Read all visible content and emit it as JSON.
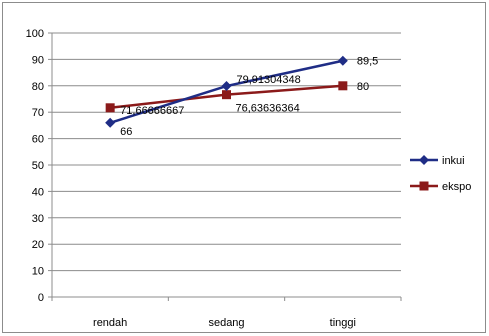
{
  "chart_data": {
    "type": "line",
    "title": "",
    "xlabel": "",
    "ylabel": "",
    "categories": [
      "rendah",
      "sedang",
      "tinggi"
    ],
    "ylim": [
      0,
      100
    ],
    "yticks": [
      0,
      10,
      20,
      30,
      40,
      50,
      60,
      70,
      80,
      90,
      100
    ],
    "grid": true,
    "legend_position": "right",
    "series": [
      {
        "name": "inkui",
        "values": [
          66,
          79.91304348,
          89.5
        ],
        "labels": [
          "66",
          "79,91304348",
          "89,5"
        ],
        "color": "#1f2d86",
        "marker": "diamond"
      },
      {
        "name": "ekspo",
        "values": [
          71.66666667,
          76.63636364,
          80
        ],
        "labels": [
          "71,66666667",
          "76,63636364",
          "80"
        ],
        "color": "#8b1a1a",
        "marker": "square"
      }
    ]
  }
}
